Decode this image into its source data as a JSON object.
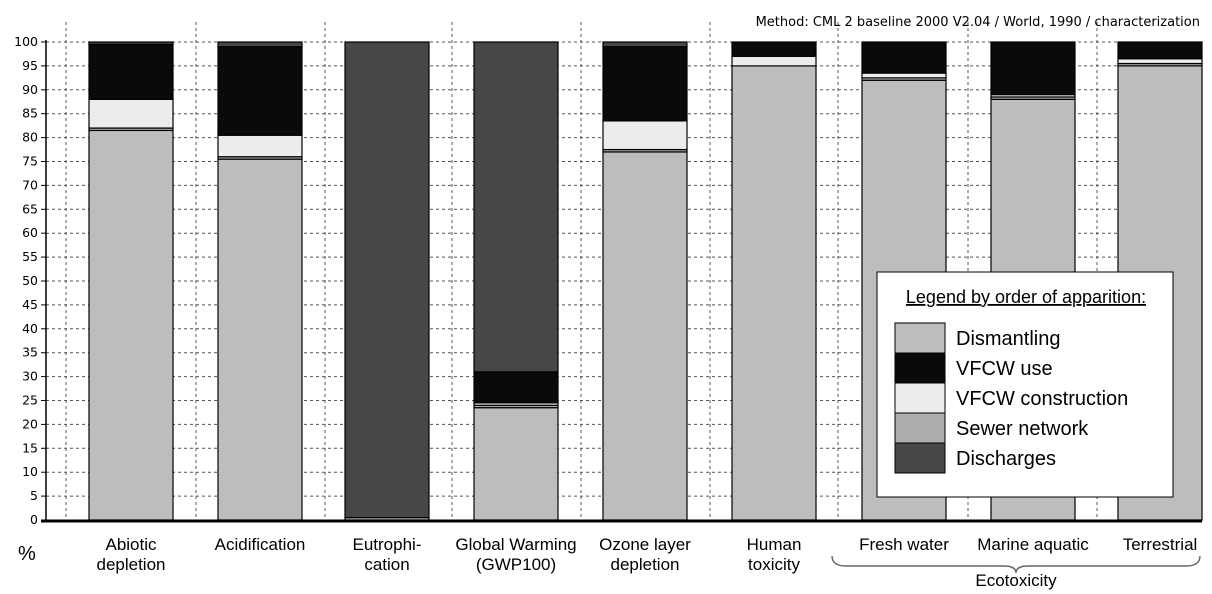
{
  "method_text": "Method: CML 2 baseline 2000 V2.04 / World, 1990 / characterization",
  "unit": "%",
  "group_label": "Ecotoxicity",
  "legend": {
    "title": "Legend by order of apparition:",
    "entries": [
      {
        "name": "Dismantling",
        "color": "#bdbdbd"
      },
      {
        "name": "VFCW  use",
        "color": "#0a0a0a"
      },
      {
        "name": "VFCW construction",
        "color": "#ececec"
      },
      {
        "name": "Sewer network",
        "color": "#acacac"
      },
      {
        "name": "Discharges",
        "color": "#474747"
      }
    ]
  },
  "chart_data": {
    "type": "bar",
    "stacked": true,
    "title": "",
    "xlabel": "",
    "ylabel": "%",
    "ylim": [
      0,
      100
    ],
    "yticks": [
      "0",
      "5",
      "10",
      "15",
      "20",
      "25",
      "30",
      "35",
      "40",
      "45",
      "50",
      "55",
      "60",
      "65",
      "70",
      "75",
      "80",
      "85",
      "90",
      "95",
      "100"
    ],
    "grid": true,
    "legend_position": "bottom-right",
    "categories": [
      [
        "Abiotic",
        "depletion"
      ],
      [
        "Acidification"
      ],
      [
        "Eutrophi-",
        "cation"
      ],
      [
        "Global Warming",
        "(GWP100)"
      ],
      [
        "Ozone layer",
        "depletion"
      ],
      [
        "Human",
        "toxicity"
      ],
      [
        "Fresh water"
      ],
      [
        "Marine aquatic"
      ],
      [
        "Terrestrial"
      ]
    ],
    "series": [
      {
        "name": "Dismantling",
        "color": "#bdbdbd",
        "values": [
          81.5,
          75.5,
          0.5,
          23.5,
          77,
          95,
          92,
          88,
          95
        ]
      },
      {
        "name": "Sewer network",
        "color": "#acacac",
        "values": [
          0.5,
          0.5,
          0,
          0.5,
          0.5,
          0,
          0.5,
          0.5,
          0.5
        ]
      },
      {
        "name": "VFCW construction",
        "color": "#ececec",
        "values": [
          6,
          4.5,
          0,
          0.5,
          6,
          2,
          1,
          0.5,
          1
        ]
      },
      {
        "name": "VFCW  use",
        "color": "#0a0a0a",
        "values": [
          11.5,
          18.5,
          0,
          6.5,
          15.5,
          3,
          6.5,
          11,
          3.5
        ]
      },
      {
        "name": "Discharges",
        "color": "#474747",
        "values": [
          0.5,
          1,
          99.5,
          69,
          1,
          0,
          0,
          0,
          0
        ]
      }
    ]
  }
}
